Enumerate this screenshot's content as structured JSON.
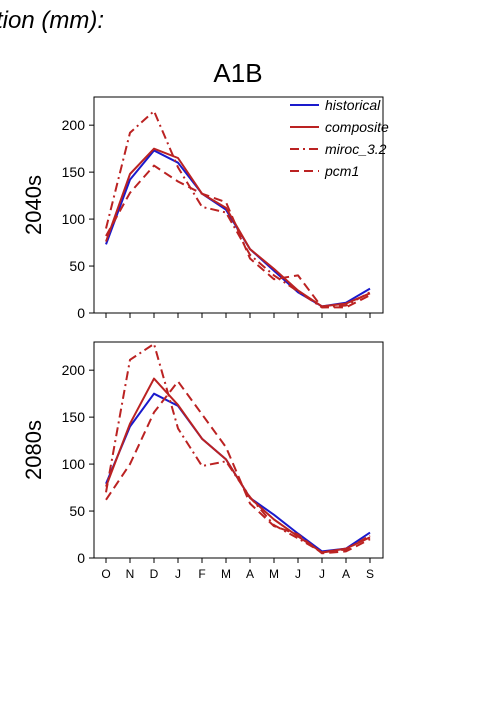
{
  "header_text": "tion (mm):",
  "scenario_title": "A1B",
  "months": [
    "O",
    "N",
    "D",
    "J",
    "F",
    "M",
    "A",
    "M",
    "J",
    "J",
    "A",
    "S"
  ],
  "y_ticks": [
    0,
    50,
    100,
    150,
    200
  ],
  "colors": {
    "historical": "#1a1acc",
    "models": "#bb2222"
  },
  "legend": [
    {
      "name": "historical",
      "style": "solid",
      "color": "#1a1acc"
    },
    {
      "name": "composite",
      "style": "solid",
      "color": "#bb2222"
    },
    {
      "name": "miroc_3.2",
      "style": "dashdot",
      "color": "#bb2222"
    },
    {
      "name": "pcm1",
      "style": "dash",
      "color": "#bb2222"
    }
  ],
  "chart_data": [
    {
      "type": "line",
      "period": "2040s",
      "ylim": [
        0,
        230
      ],
      "series": [
        {
          "name": "historical",
          "values": [
            73,
            142,
            173,
            160,
            127,
            110,
            68,
            45,
            22,
            7,
            11,
            26
          ]
        },
        {
          "name": "composite",
          "values": [
            76,
            148,
            175,
            165,
            127,
            112,
            68,
            47,
            24,
            7,
            10,
            21
          ]
        },
        {
          "name": "miroc_3.2",
          "values": [
            90,
            192,
            215,
            155,
            113,
            107,
            62,
            40,
            23,
            6,
            8,
            22
          ]
        },
        {
          "name": "pcm1",
          "values": [
            82,
            128,
            157,
            140,
            127,
            118,
            58,
            36,
            40,
            6,
            6,
            19
          ]
        }
      ]
    },
    {
      "type": "line",
      "period": "2080s",
      "ylim": [
        0,
        230
      ],
      "series": [
        {
          "name": "historical",
          "values": [
            79,
            140,
            175,
            162,
            127,
            105,
            64,
            46,
            26,
            7,
            10,
            27
          ]
        },
        {
          "name": "composite",
          "values": [
            76,
            143,
            191,
            163,
            127,
            105,
            64,
            41,
            23,
            6,
            10,
            22
          ]
        },
        {
          "name": "miroc_3.2",
          "values": [
            70,
            211,
            228,
            138,
            98,
            103,
            65,
            35,
            21,
            6,
            9,
            24
          ]
        },
        {
          "name": "pcm1",
          "values": [
            62,
            100,
            155,
            188,
            153,
            118,
            58,
            34,
            25,
            5,
            7,
            20
          ]
        }
      ]
    }
  ]
}
